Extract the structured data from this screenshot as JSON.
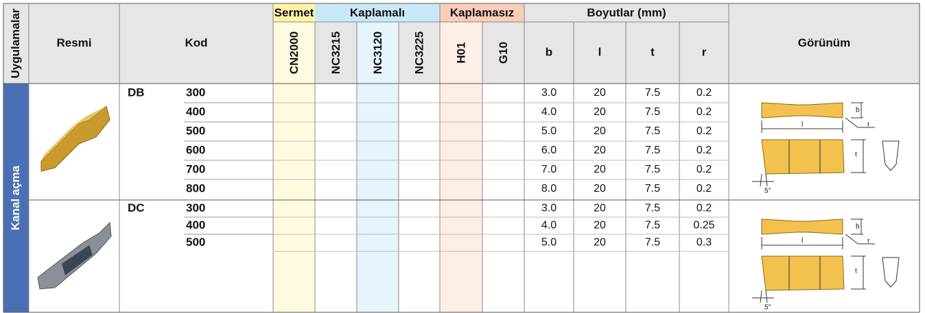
{
  "header": {
    "side_label": "Uygulamalar",
    "image": "Resmi",
    "code": "Kod",
    "grade_groups": [
      {
        "name": "Sermet",
        "grades": [
          "CN2000"
        ]
      },
      {
        "name": "Kaplamalı",
        "grades": [
          "NC3215",
          "NC3120",
          "NC3225"
        ]
      },
      {
        "name": "Kaplamasız",
        "grades": [
          "H01",
          "G10"
        ]
      }
    ],
    "dimensions": {
      "title": "Boyutlar (mm)",
      "columns": [
        "b",
        "l",
        "t",
        "r"
      ]
    },
    "view": "Görünüm"
  },
  "application": "Kanal açma",
  "groups": [
    {
      "name": "DB",
      "rows": [
        [
          "300",
          "3.0",
          "20",
          "7.5",
          "0.2"
        ],
        [
          "400",
          "4.0",
          "20",
          "7.5",
          "0.2"
        ],
        [
          "500",
          "5.0",
          "20",
          "7.5",
          "0.2"
        ],
        [
          "600",
          "6.0",
          "20",
          "7.5",
          "0.2"
        ],
        [
          "700",
          "7.0",
          "20",
          "7.5",
          "0.2"
        ],
        [
          "800",
          "8.0",
          "20",
          "7.5",
          "0.2"
        ]
      ]
    },
    {
      "name": "DC",
      "rows": [
        [
          "300",
          "3.0",
          "20",
          "7.5",
          "0.2"
        ],
        [
          "400",
          "4.0",
          "20",
          "7.5",
          "0.25"
        ],
        [
          "500",
          "5.0",
          "20",
          "7.5",
          "0.3"
        ]
      ]
    }
  ],
  "diagram_labels": {
    "b": "b",
    "l": "l",
    "r": "r",
    "t": "t",
    "angle": "5°"
  }
}
